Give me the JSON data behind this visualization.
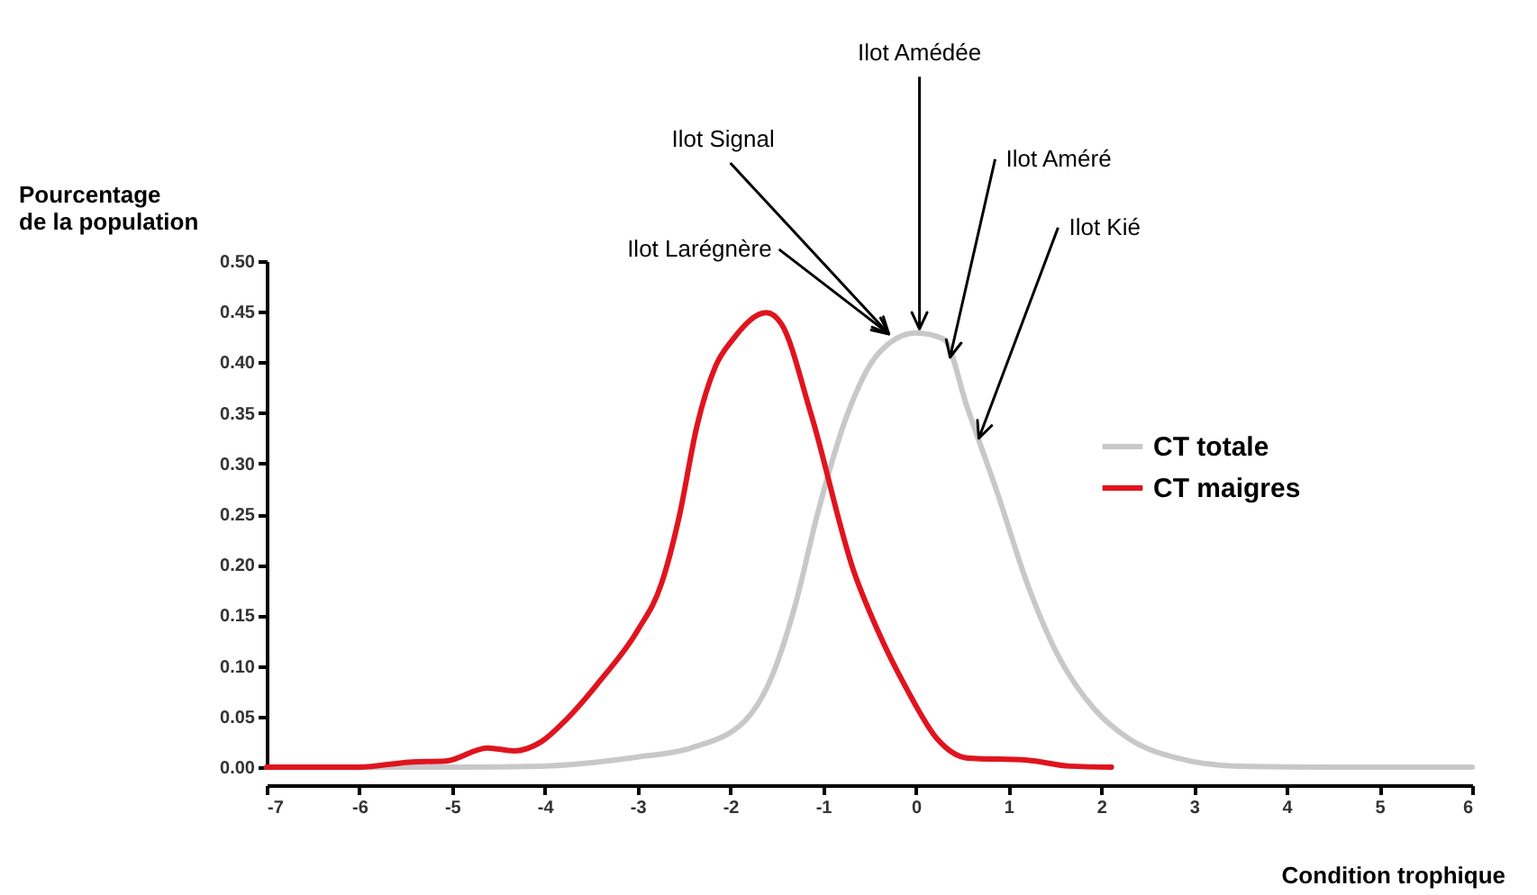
{
  "chart_data": {
    "type": "line",
    "xlabel": "Condition trophique",
    "ylabel": "Pourcentage\nde la population",
    "xlim": [
      -7,
      6
    ],
    "xticks": [
      -7,
      -6,
      -5,
      -4,
      -3,
      -2,
      -1,
      0,
      1,
      2,
      3,
      4,
      5,
      6
    ],
    "ylim": [
      0,
      0.5
    ],
    "yticks": [
      {
        "value": 0,
        "label": "0.00"
      },
      {
        "value": 0.05,
        "label": "0.05"
      },
      {
        "value": 0.1,
        "label": "0.10"
      },
      {
        "value": 0.15,
        "label": "0.15"
      },
      {
        "value": 0.2,
        "label": "0.20"
      },
      {
        "value": 0.25,
        "label": "0.25"
      },
      {
        "value": 0.3,
        "label": "0.30"
      },
      {
        "value": 0.35,
        "label": "0.35"
      },
      {
        "value": 0.4,
        "label": "0.40"
      },
      {
        "value": 0.45,
        "label": "0.45"
      },
      {
        "value": 0.5,
        "label": "0.50"
      }
    ],
    "grid": false,
    "legend": "right",
    "marker": "none",
    "line_style": "solid",
    "series": [
      {
        "name": "CT totale",
        "color": "#c8c8c8",
        "x": [
          -7,
          -6,
          -5,
          -4.04,
          -3.0,
          -2.42,
          -1.84,
          -1.55,
          -1.3,
          -1.06,
          -0.74,
          -0.41,
          0,
          0.3,
          0.56,
          0.88,
          1.2,
          1.53,
          1.92,
          2.3,
          2.82,
          3.47,
          4.5,
          6
        ],
        "values": [
          0,
          0,
          0,
          0.001,
          0.01,
          0.019,
          0.046,
          0.09,
          0.16,
          0.25,
          0.348,
          0.408,
          0.429,
          0.423,
          0.354,
          0.271,
          0.182,
          0.111,
          0.058,
          0.028,
          0.009,
          0.001,
          0,
          0
        ]
      },
      {
        "name": "CT maigres",
        "color": "#e0141e",
        "x": [
          -7,
          -6,
          -5.46,
          -5.07,
          -4.62,
          -4.33,
          -4.04,
          -3.78,
          -3.39,
          -3.0,
          -2.74,
          -2.55,
          -2.36,
          -2.16,
          -1.97,
          -1.61,
          -1.45,
          -1.13,
          -0.67,
          -0.41,
          -0.09,
          0.23,
          0.56,
          1.2,
          1.66,
          2.11
        ],
        "values": [
          0,
          0,
          0.005,
          0.006,
          0.019,
          0.016,
          0.025,
          0.046,
          0.087,
          0.135,
          0.182,
          0.248,
          0.337,
          0.396,
          0.423,
          0.449,
          0.438,
          0.349,
          0.194,
          0.135,
          0.076,
          0.028,
          0.009,
          0.007,
          0.001,
          0
        ]
      }
    ],
    "annotations": [
      {
        "text": "Ilot Amédée",
        "x": 0.04,
        "y": 0.433
      },
      {
        "text": "Ilot Signal",
        "x": -0.29,
        "y": 0.428
      },
      {
        "text": "Ilot Larégnère",
        "x": -0.29,
        "y": 0.428
      },
      {
        "text": "Ilot Améré",
        "x": 0.37,
        "y": 0.405
      },
      {
        "text": "Ilot Kié",
        "x": 0.68,
        "y": 0.325
      }
    ]
  }
}
